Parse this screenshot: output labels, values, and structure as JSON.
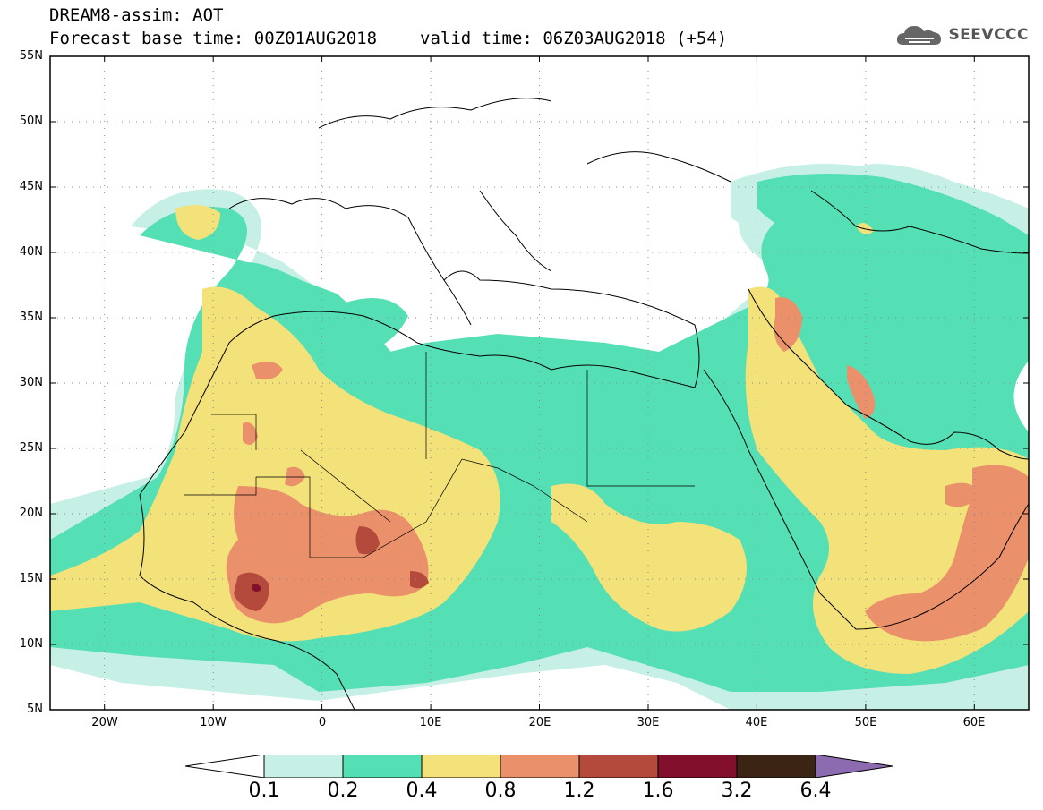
{
  "header": {
    "title": "DREAM8-assim: AOT",
    "base_time": "Forecast base time: 00Z01AUG2018",
    "valid_time": "valid time: 06Z03AUG2018 (+54)"
  },
  "logo": {
    "text": "SEEVCCC",
    "icon": "cloud-icon"
  },
  "map": {
    "lat_labels": [
      "55N",
      "50N",
      "45N",
      "40N",
      "35N",
      "30N",
      "25N",
      "20N",
      "15N",
      "10N",
      "5N"
    ],
    "lon_labels": [
      "20W",
      "10W",
      "0",
      "10E",
      "20E",
      "30E",
      "40E",
      "50E",
      "60E"
    ],
    "lon_range": [
      -25,
      65
    ],
    "lat_range": [
      5,
      55
    ],
    "grid": "dotted"
  },
  "colorbar": {
    "labels": [
      "0.1",
      "0.2",
      "0.4",
      "0.8",
      "1.2",
      "1.6",
      "3.2",
      "6.4"
    ],
    "colors": [
      "#ffffff",
      "#c6efe6",
      "#55dfb4",
      "#f3e17a",
      "#ea906a",
      "#b34a3c",
      "#820f2c",
      "#3c2414",
      "#8c6bb0"
    ]
  }
}
